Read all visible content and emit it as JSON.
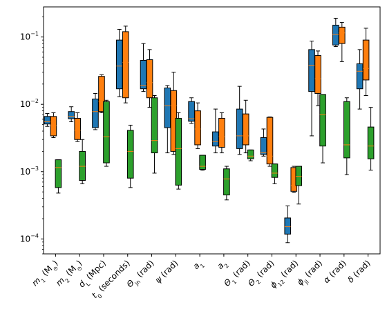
{
  "chart_data": {
    "type": "box",
    "title": "",
    "xlabel": "",
    "ylabel": "",
    "yscale": "log",
    "ylim": [
      6e-05,
      0.28
    ],
    "y_ticks": [
      {
        "value": 0.0001,
        "base": "10",
        "exp": "−4"
      },
      {
        "value": 0.001,
        "base": "10",
        "exp": "−3"
      },
      {
        "value": 0.01,
        "base": "10",
        "exp": "−2"
      },
      {
        "value": 0.1,
        "base": "10",
        "exp": "−1"
      }
    ],
    "categories": [
      {
        "main": "m",
        "sub": "1",
        "rest": " (M",
        "sun": "⊙",
        "end": ")"
      },
      {
        "main": "m",
        "sub": "2",
        "rest": " (M",
        "sun": "⊙",
        "end": ")"
      },
      {
        "main": "d",
        "sub": "L",
        "rest": " (Mpc)",
        "sun": "",
        "end": ""
      },
      {
        "main": "t",
        "sub": "0",
        "rest": " (seconds)",
        "sun": "",
        "end": ""
      },
      {
        "main": "Θ",
        "sub": "jn",
        "rest": " (rad)",
        "sun": "",
        "end": ""
      },
      {
        "main": "ψ",
        "sub": "",
        "rest": " (rad)",
        "sun": "",
        "end": ""
      },
      {
        "main": "a",
        "sub": "1",
        "rest": "",
        "sun": "",
        "end": ""
      },
      {
        "main": "a",
        "sub": "2",
        "rest": "",
        "sun": "",
        "end": ""
      },
      {
        "main": "Θ",
        "sub": "1",
        "rest": " (rad)",
        "sun": "",
        "end": ""
      },
      {
        "main": "Θ",
        "sub": "2",
        "rest": " (rad)",
        "sun": "",
        "end": ""
      },
      {
        "main": "ϕ",
        "sub": "12",
        "rest": " (rad)",
        "sun": "",
        "end": ""
      },
      {
        "main": "ϕ",
        "sub": "jl",
        "rest": " (rad)",
        "sun": "",
        "end": ""
      },
      {
        "main": "α",
        "sub": "",
        "rest": " (rad)",
        "sun": "",
        "end": ""
      },
      {
        "main": "δ",
        "sub": "",
        "rest": " (rad)",
        "sun": "",
        "end": ""
      }
    ],
    "colors": {
      "blue": "#1f77b4",
      "orange": "#ff7f0e",
      "green": "#2ca02c",
      "median": "#ff7f0e"
    },
    "series": [
      {
        "color": "#1f77b4",
        "boxes": [
          {
            "min": 0.0047,
            "q1": 0.0051,
            "median": 0.0055,
            "q3": 0.0066,
            "max": 0.0073
          },
          {
            "min": 0.0055,
            "q1": 0.0061,
            "median": 0.0066,
            "q3": 0.0078,
            "max": 0.0092
          },
          {
            "min": 0.0042,
            "q1": 0.0045,
            "median": 0.0078,
            "q3": 0.012,
            "max": 0.0145
          },
          {
            "min": 0.013,
            "q1": 0.017,
            "median": 0.037,
            "q3": 0.09,
            "max": 0.13
          },
          {
            "min": 0.0155,
            "q1": 0.017,
            "median": 0.019,
            "q3": 0.045,
            "max": 0.08
          },
          {
            "min": 0.0019,
            "q1": 0.0045,
            "median": 0.0095,
            "q3": 0.0175,
            "max": 0.019
          },
          {
            "min": 0.0052,
            "q1": 0.0056,
            "median": 0.0061,
            "q3": 0.011,
            "max": 0.0125
          },
          {
            "min": 0.0019,
            "q1": 0.0024,
            "median": 0.0028,
            "q3": 0.0039,
            "max": 0.0085
          },
          {
            "min": 0.0018,
            "q1": 0.0022,
            "median": 0.0034,
            "q3": 0.0085,
            "max": 0.0185
          },
          {
            "min": 0.0017,
            "q1": 0.0018,
            "median": 0.0019,
            "q3": 0.0032,
            "max": 0.0043
          },
          {
            "min": 8.8e-05,
            "q1": 0.000118,
            "median": 0.000152,
            "q3": 0.000205,
            "max": 0.00031
          },
          {
            "min": 0.0034,
            "q1": 0.0155,
            "median": 0.038,
            "q3": 0.065,
            "max": 0.087
          },
          {
            "min": 0.072,
            "q1": 0.076,
            "median": 0.11,
            "q3": 0.15,
            "max": 0.19
          },
          {
            "min": 0.0085,
            "q1": 0.017,
            "median": 0.031,
            "q3": 0.04,
            "max": 0.065
          }
        ]
      },
      {
        "color": "#ff7f0e",
        "boxes": [
          {
            "min": 0.0032,
            "q1": 0.0034,
            "median": 0.0048,
            "q3": 0.0066,
            "max": 0.0075
          },
          {
            "min": 0.0028,
            "q1": 0.003,
            "median": 0.0041,
            "q3": 0.0062,
            "max": 0.0075
          },
          {
            "min": 0.0075,
            "q1": 0.0078,
            "median": 0.011,
            "q3": 0.026,
            "max": 0.0275
          },
          {
            "min": 0.0105,
            "q1": 0.0125,
            "median": 0.042,
            "q3": 0.12,
            "max": 0.145
          },
          {
            "min": 0.009,
            "q1": 0.0125,
            "median": 0.021,
            "q3": 0.046,
            "max": 0.065
          },
          {
            "min": 0.0018,
            "q1": 0.002,
            "median": 0.0095,
            "q3": 0.016,
            "max": 0.03
          },
          {
            "min": 0.0022,
            "q1": 0.0025,
            "median": 0.0043,
            "q3": 0.008,
            "max": 0.0105
          },
          {
            "min": 0.0019,
            "q1": 0.0023,
            "median": 0.0033,
            "q3": 0.0062,
            "max": 0.0075
          },
          {
            "min": 0.0019,
            "q1": 0.0025,
            "median": 0.0034,
            "q3": 0.0072,
            "max": 0.0115
          },
          {
            "min": 0.0012,
            "q1": 0.0013,
            "median": 0.0017,
            "q3": 0.0064,
            "max": 0.0065
          },
          {
            "min": 0.00049,
            "q1": 0.00051,
            "median": 0.00062,
            "q3": 0.00115,
            "max": 0.0012
          },
          {
            "min": 0.0095,
            "q1": 0.0145,
            "median": 0.024,
            "q3": 0.053,
            "max": 0.062
          },
          {
            "min": 0.043,
            "q1": 0.08,
            "median": 0.115,
            "q3": 0.14,
            "max": 0.165
          },
          {
            "min": 0.0135,
            "q1": 0.023,
            "median": 0.034,
            "q3": 0.09,
            "max": 0.135
          }
        ]
      },
      {
        "color": "#2ca02c",
        "boxes": [
          {
            "min": 0.00048,
            "q1": 0.00058,
            "median": 0.00115,
            "q3": 0.0015,
            "max": 0.0015
          },
          {
            "min": 0.00066,
            "q1": 0.00074,
            "median": 0.0012,
            "q3": 0.002,
            "max": 0.003
          },
          {
            "min": 0.0012,
            "q1": 0.00135,
            "median": 0.0033,
            "q3": 0.011,
            "max": 0.0115
          },
          {
            "min": 0.00058,
            "q1": 0.0008,
            "median": 0.002,
            "q3": 0.0041,
            "max": 0.0049
          },
          {
            "min": 0.00095,
            "q1": 0.0019,
            "median": 0.0029,
            "q3": 0.0125,
            "max": 0.0135
          },
          {
            "min": 0.00055,
            "q1": 0.00063,
            "median": 0.0022,
            "q3": 0.0062,
            "max": 0.0075
          },
          {
            "min": 0.00105,
            "q1": 0.00108,
            "median": 0.0012,
            "q3": 0.00175,
            "max": 0.00175
          },
          {
            "min": 0.00038,
            "q1": 0.00045,
            "median": 0.00078,
            "q3": 0.0011,
            "max": 0.0012
          },
          {
            "min": 0.00145,
            "q1": 0.00155,
            "median": 0.0017,
            "q3": 0.0021,
            "max": 0.0021
          },
          {
            "min": 0.00066,
            "q1": 0.00082,
            "median": 0.00095,
            "q3": 0.0013,
            "max": 0.0013
          },
          {
            "min": 0.00033,
            "q1": 0.00062,
            "median": 0.00085,
            "q3": 0.0012,
            "max": 0.0012
          },
          {
            "min": 0.00135,
            "q1": 0.0024,
            "median": 0.007,
            "q3": 0.014,
            "max": 0.014
          },
          {
            "min": 0.0009,
            "q1": 0.0016,
            "median": 0.0025,
            "q3": 0.011,
            "max": 0.0125
          },
          {
            "min": 0.00105,
            "q1": 0.00155,
            "median": 0.0024,
            "q3": 0.0046,
            "max": 0.009
          }
        ]
      }
    ]
  }
}
